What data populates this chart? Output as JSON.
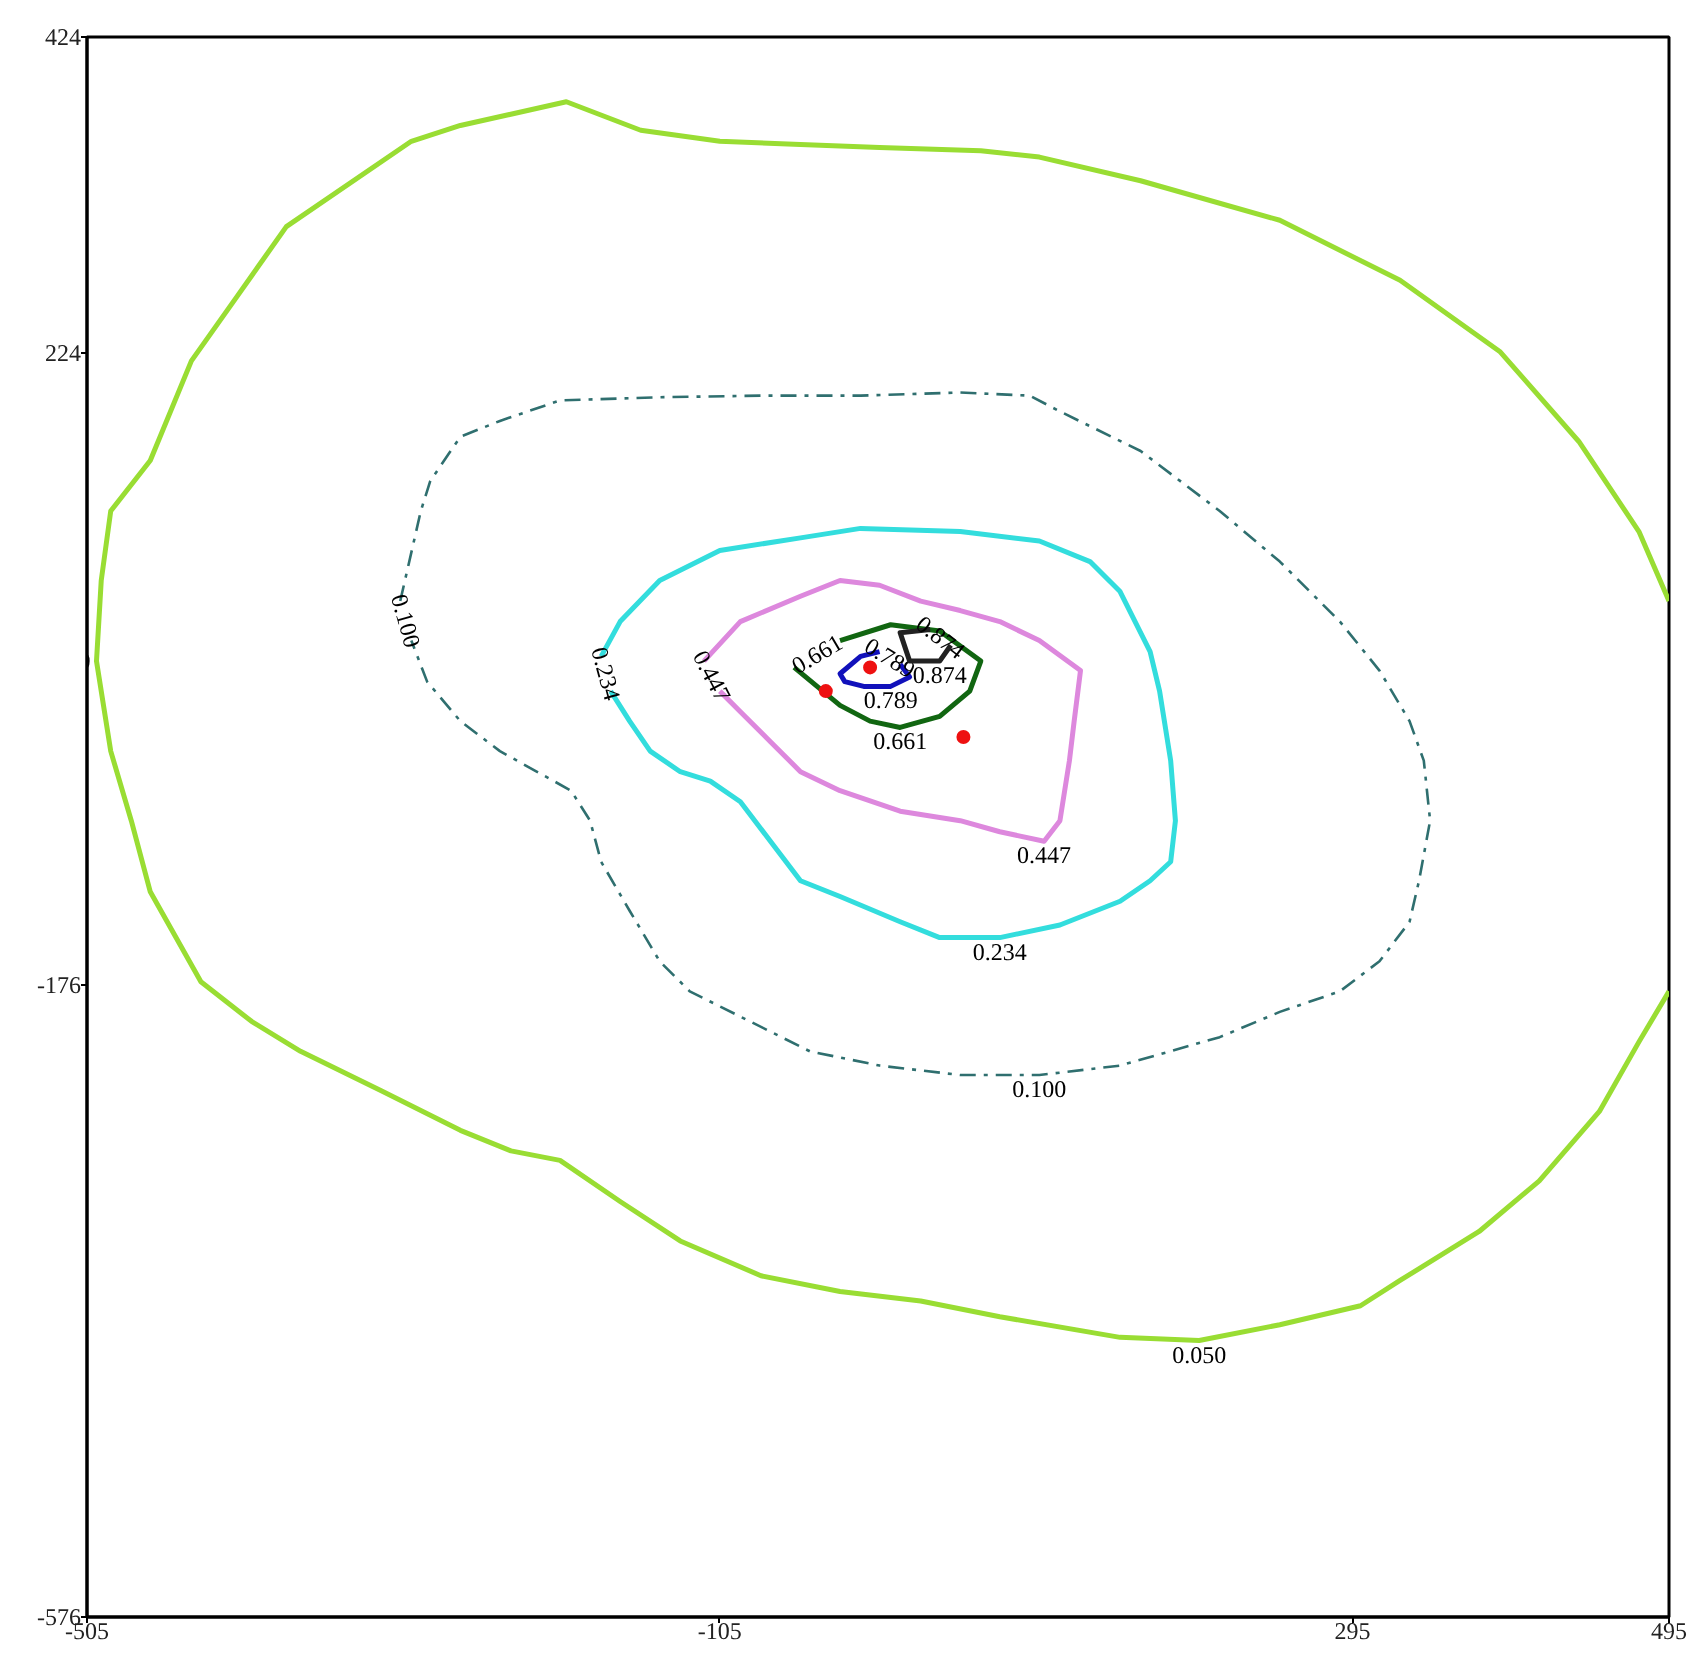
{
  "chart_data": {
    "type": "line",
    "xlim": [
      -505,
      495
    ],
    "ylim": [
      -576,
      424
    ],
    "xticks": [
      -505,
      -105,
      295,
      495
    ],
    "yticks": [
      -576,
      -176,
      224,
      424
    ],
    "grid": false,
    "legend": false,
    "series": [
      {
        "name": "0.050",
        "color": "#99dd33",
        "line_style": "solid",
        "x": [
          495,
          476,
          438,
          388,
          325,
          249,
          161,
          97,
          60,
          -4,
          -54,
          -105,
          -155,
          -202,
          -269,
          -300,
          -379,
          -410,
          -439,
          -465,
          -490,
          -496,
          -499,
          -490,
          -477,
          -465,
          -433,
          -401,
          -370,
          -319,
          -269,
          -237,
          -206,
          -168,
          -130,
          -79,
          -29,
          22,
          72,
          148,
          198,
          249,
          300,
          325,
          375,
          413,
          451,
          476,
          495
        ],
        "values": [
          67,
          111,
          168,
          225,
          270,
          308,
          333,
          348,
          352,
          354,
          356,
          358,
          365,
          383,
          368,
          358,
          304,
          260,
          219,
          156,
          124,
          80,
          29,
          -28,
          -72,
          -117,
          -174,
          -199,
          -218,
          -243,
          -268,
          -281,
          -287,
          -313,
          -338,
          -360,
          -370,
          -376,
          -386,
          -399,
          -401,
          -391,
          -379,
          -363,
          -332,
          -300,
          -256,
          -212,
          -180
        ]
      },
      {
        "name": "0.100",
        "color": "#2f6f6f",
        "line_style": "dashed",
        "x": [
          -307,
          -294,
          -288,
          -269,
          -244,
          -206,
          -143,
          -79,
          -16,
          47,
          91,
          110,
          161,
          211,
          249,
          287,
          312,
          331,
          340,
          344,
          337,
          331,
          312,
          287,
          249,
          211,
          148,
          97,
          47,
          -4,
          -48,
          -86,
          -124,
          -143,
          -162,
          -180,
          -187,
          -199,
          -244,
          -269,
          -290,
          -300
        ],
        "values": [
          67,
          124,
          143,
          171,
          181,
          194,
          196,
          197,
          197,
          199,
          197,
          187,
          162,
          124,
          92,
          54,
          23,
          -9,
          -34,
          -72,
          -110,
          -136,
          -161,
          -180,
          -193,
          -209,
          -227,
          -233,
          -233,
          -227,
          -218,
          -199,
          -180,
          -161,
          -129,
          -98,
          -72,
          -53,
          -28,
          -9,
          16,
          42
        ]
      },
      {
        "name": "0.234",
        "color": "#33dddd",
        "line_style": "solid",
        "x": [
          -180,
          -168,
          -143,
          -105,
          -54,
          -16,
          47,
          97,
          129,
          148,
          167,
          173,
          180,
          183,
          180,
          167,
          148,
          110,
          72,
          34,
          9,
          -29,
          -54,
          -73,
          -92,
          -111,
          -130,
          -149,
          -162,
          -174
        ],
        "values": [
          32,
          54,
          80,
          99,
          107,
          113,
          111,
          105,
          92,
          73,
          35,
          10,
          -34,
          -72,
          -98,
          -110,
          -123,
          -138,
          -146,
          -146,
          -136,
          -120,
          -110,
          -85,
          -60,
          -47,
          -41,
          -28,
          -9,
          10
        ]
      },
      {
        "name": "0.447",
        "color": "#dd88dd",
        "line_style": "solid",
        "x": [
          -115,
          -92,
          -54,
          -29,
          -4,
          22,
          47,
          72,
          97,
          123,
          119,
          116,
          110,
          100,
          72,
          47,
          9,
          -29,
          -54,
          -73,
          -92,
          -105
        ],
        "values": [
          29,
          54,
          70,
          80,
          77,
          67,
          61,
          54,
          42,
          23,
          -9,
          -34,
          -72,
          -85,
          -79,
          -72,
          -66,
          -53,
          -41,
          -22,
          -3,
          10
        ]
      },
      {
        "name": "0.661",
        "color": "#116611",
        "line_style": "solid",
        "x": [
          -29,
          3,
          34,
          60,
          53,
          34,
          9,
          -10,
          -29,
          -58
        ],
        "values": [
          42,
          52,
          48,
          29,
          10,
          -6,
          -13,
          -9,
          1,
          25
        ]
      },
      {
        "name": "0.789",
        "color": "#1111bb",
        "line_style": "solid",
        "x": [
          9,
          15,
          3,
          -14,
          -26,
          -29,
          -16,
          -4
        ],
        "values": [
          27,
          19,
          13,
          13,
          16,
          21,
          32,
          35
        ]
      },
      {
        "name": "0.874",
        "color": "#222222",
        "line_style": "solid",
        "x": [
          41,
          34,
          15,
          9,
          28
        ],
        "values": [
          39,
          29,
          29,
          47,
          49
        ]
      },
      {
        "type": "scatter",
        "color": "#ee1111",
        "marker": "circle",
        "x": [
          -38,
          49,
          -10
        ],
        "values": [
          10,
          -19,
          25
        ]
      }
    ]
  }
}
